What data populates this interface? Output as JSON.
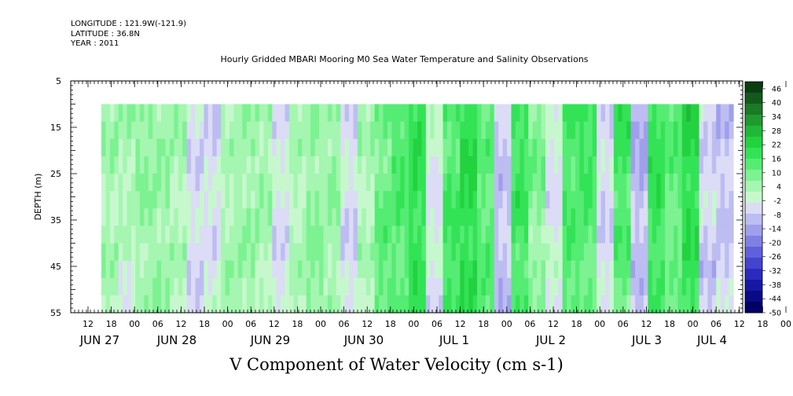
{
  "header": {
    "longitude": "LONGITUDE : 121.9W(-121.9)",
    "latitude": "LATITUDE : 36.8N",
    "year": "YEAR : 2011"
  },
  "chart_data": {
    "type": "heatmap",
    "title": "Hourly Gridded MBARI Mooring M0 Sea Water Temperature and Salinity Observations",
    "xlabel": "V Component of Water Velocity (cm s-1)",
    "ylabel": "DEPTH (m)",
    "ylim": [
      55,
      5
    ],
    "y_ticks": [
      5,
      15,
      25,
      35,
      45,
      55
    ],
    "data_depth_range": [
      10,
      55
    ],
    "x_hour_ticks": [
      "12",
      "18",
      "00",
      "06",
      "12",
      "18",
      "00",
      "06",
      "12",
      "18",
      "00",
      "06",
      "12",
      "18",
      "00",
      "06",
      "12",
      "18",
      "00",
      "06",
      "12",
      "18",
      "00",
      "06",
      "12",
      "18",
      "00",
      "06",
      "12",
      "18",
      "00",
      "06"
    ],
    "x_day_labels": [
      "JUN 27",
      "JUN 28",
      "JUN 29",
      "JUN 30",
      "JUL 1",
      "JUL 2",
      "JUL 3",
      "JUL 4"
    ],
    "colorbar": {
      "labels": [
        "46",
        "40",
        "34",
        "28",
        "22",
        "16",
        "10",
        "4",
        "-2",
        "-8",
        "-14",
        "-20",
        "-26",
        "-32",
        "-38",
        "-44",
        "-50"
      ],
      "min": -50,
      "max": 49,
      "step": 3,
      "colors_high_to_low": [
        "#0b3d12",
        "#14591c",
        "#1a7a25",
        "#1f9a2e",
        "#21b838",
        "#23d23f",
        "#33e356",
        "#55ec73",
        "#7cf291",
        "#a4f6b0",
        "#c7f8cd",
        "#dcdcf6",
        "#bdbdf2",
        "#9f9fec",
        "#8080e4",
        "#6060dc",
        "#4444cf",
        "#2a2abd",
        "#1717a4",
        "#0a0a85",
        "#000066"
      ]
    },
    "time_columns_v_profile": [
      [
        4,
        3
      ],
      [
        6,
        -2
      ],
      [
        8,
        4
      ],
      [
        5,
        6
      ],
      [
        3,
        2
      ],
      [
        -4,
        -6
      ],
      [
        -6,
        -3
      ],
      [
        2,
        4
      ],
      [
        4,
        6
      ],
      [
        6,
        2
      ],
      [
        -3,
        -5
      ],
      [
        2,
        3
      ],
      [
        5,
        8
      ],
      [
        6,
        4
      ],
      [
        -4,
        -6
      ],
      [
        3,
        2
      ],
      [
        10,
        14
      ],
      [
        16,
        12
      ],
      [
        20,
        18
      ],
      [
        -2,
        -4
      ],
      [
        14,
        18
      ],
      [
        22,
        20
      ],
      [
        12,
        14
      ],
      [
        -8,
        -10
      ],
      [
        18,
        16
      ],
      [
        10,
        4
      ],
      [
        -4,
        -2
      ],
      [
        16,
        14
      ],
      [
        20,
        10
      ],
      [
        -6,
        -4
      ],
      [
        18,
        12
      ],
      [
        -12,
        -8
      ],
      [
        20,
        16
      ],
      [
        14,
        10
      ],
      [
        22,
        18
      ],
      [
        -6,
        -8
      ],
      [
        -10,
        -6
      ]
    ]
  }
}
